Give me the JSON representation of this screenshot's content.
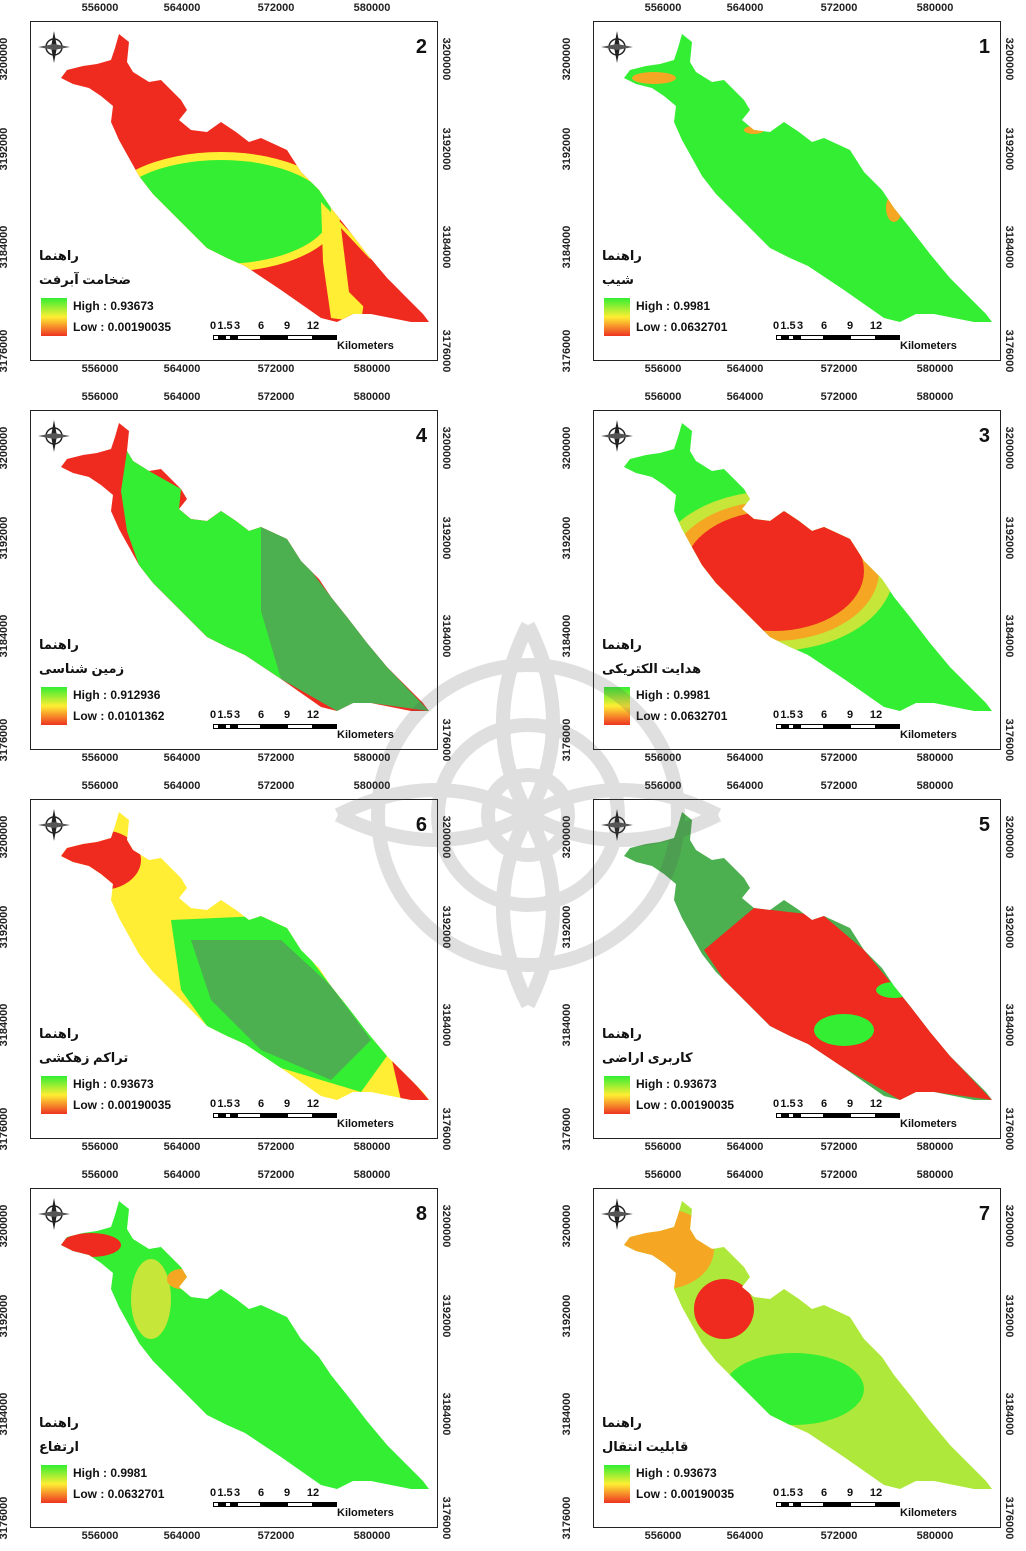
{
  "axes": {
    "x_ticks": [
      "556000",
      "564000",
      "572000",
      "580000"
    ],
    "y_ticks": [
      "3200000",
      "3192000",
      "3184000",
      "3176000"
    ]
  },
  "legend_title": "راهنما",
  "scale": {
    "ticks": [
      "0",
      "1.5",
      "3",
      "6",
      "9",
      "12"
    ],
    "units": "Kilometers"
  },
  "colors": {
    "high": "#33ee33",
    "mid": "#ffee33",
    "low": "#ee2b1e",
    "dark_green": "#4caf50",
    "orange": "#f5a623"
  },
  "panels": [
    {
      "number": "2",
      "layer": "ضخامت آبرفت",
      "high": "High : 0.93673",
      "low": "Low : 0.00190035"
    },
    {
      "number": "1",
      "layer": "شیب",
      "high": "High : 0.9981",
      "low": "Low : 0.0632701"
    },
    {
      "number": "4",
      "layer": "زمین شناسی",
      "high": "High : 0.912936",
      "low": "Low : 0.0101362"
    },
    {
      "number": "3",
      "layer": "هدایت الکتریکی",
      "high": "High : 0.9981",
      "low": "Low : 0.0632701"
    },
    {
      "number": "6",
      "layer": "تراکم زهکشی",
      "high": "High : 0.93673",
      "low": "Low : 0.00190035"
    },
    {
      "number": "5",
      "layer": "کاربری اراضی",
      "high": "High : 0.93673",
      "low": "Low : 0.00190035"
    },
    {
      "number": "8",
      "layer": "ارتفاع",
      "high": "High : 0.9981",
      "low": "Low : 0.0632701"
    },
    {
      "number": "7",
      "layer": "قابلیت انتقال",
      "high": "High : 0.93673",
      "low": "Low : 0.00190035"
    }
  ]
}
